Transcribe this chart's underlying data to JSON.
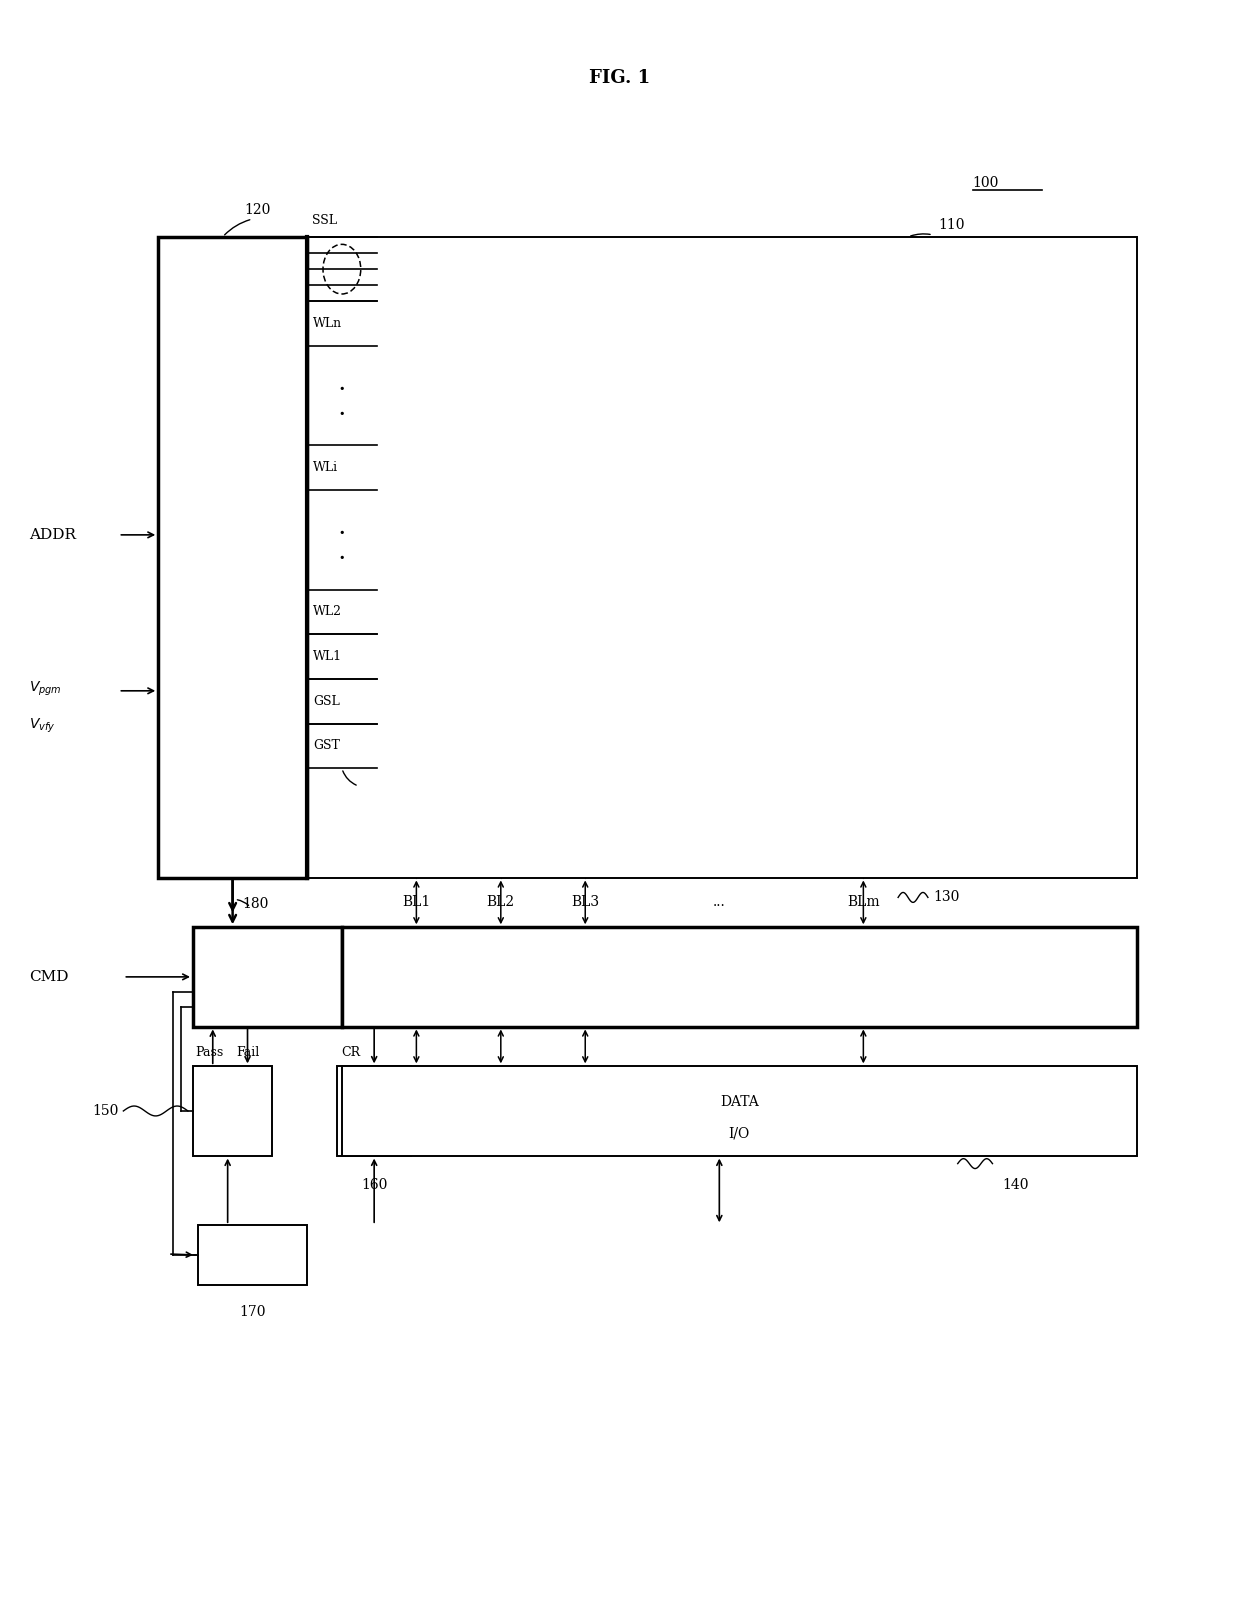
{
  "title": "FIG. 1",
  "bg_color": "#ffffff",
  "lbl_100": "100",
  "lbl_110": "110",
  "lbl_120": "120",
  "lbl_130": "130",
  "lbl_140": "140",
  "lbl_150": "150",
  "lbl_160": "160",
  "lbl_170": "170",
  "lbl_180": "180",
  "wl_labels": [
    "SSL",
    "WLn",
    "WLi",
    "WL2",
    "WL1",
    "GSL",
    "GST"
  ],
  "bl_labels": [
    "BL1",
    "BL2",
    "BL3",
    "...",
    "BLm"
  ],
  "addr_label": "ADDR",
  "vpgm_label": "V_pgm",
  "vvfy_label": "V_vfy",
  "cmd_label": "CMD",
  "pass_label": "Pass",
  "fail_label": "Fail",
  "cr_label": "CR",
  "data_io_label": "DATA\nI/O"
}
